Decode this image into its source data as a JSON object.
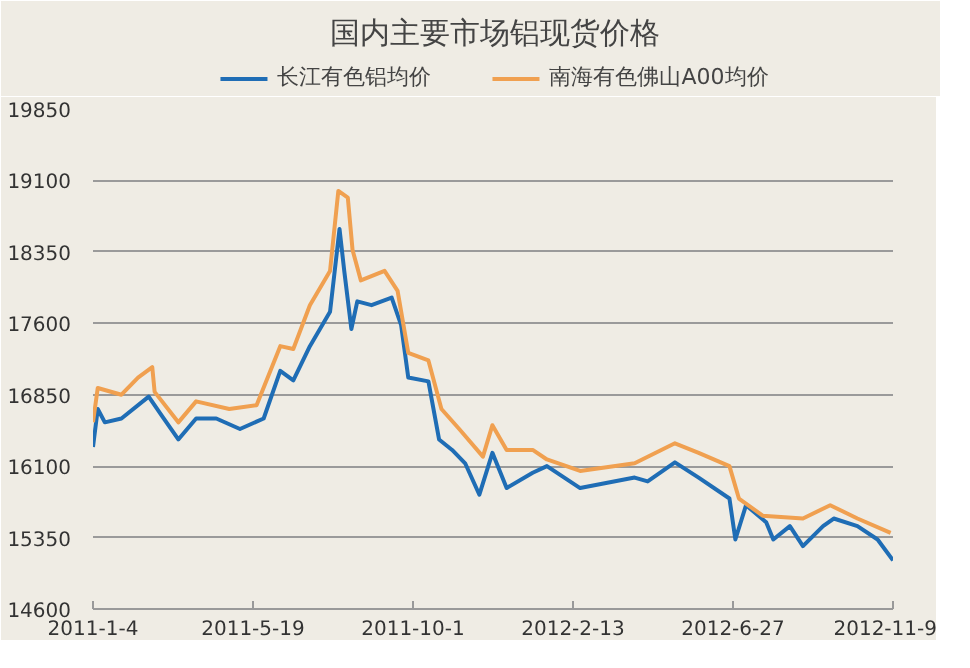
{
  "chart_data": {
    "type": "line",
    "title": "国内主要市场铝现货价格",
    "xlim": [
      "2011-01-04",
      "2012-11-09"
    ],
    "xticks": [
      {
        "value": "2011-01-04",
        "label": "2011-1-4"
      },
      {
        "value": "2011-05-19",
        "label": "2011-5-19"
      },
      {
        "value": "2011-10-01",
        "label": "2011-10-1"
      },
      {
        "value": "2012-02-13",
        "label": "2012-2-13"
      },
      {
        "value": "2012-06-27",
        "label": "2012-6-27"
      },
      {
        "value": "2012-11-09",
        "label": "2012-11-9"
      }
    ],
    "ylim": [
      14600,
      19850
    ],
    "yticks": [
      14600,
      15350,
      16100,
      16850,
      17600,
      18350,
      19100,
      19850
    ],
    "grid": "y",
    "legend": "top",
    "line_style": "solid",
    "marker": "none",
    "series": [
      {
        "name": "长江有色铝均价",
        "color": "#1f6db5",
        "x": [
          "2011-01-04",
          "2011-01-08",
          "2011-01-14",
          "2011-01-28",
          "2011-02-20",
          "2011-03-03",
          "2011-03-17",
          "2011-04-01",
          "2011-04-18",
          "2011-05-08",
          "2011-05-28",
          "2011-06-11",
          "2011-06-22",
          "2011-07-06",
          "2011-07-23",
          "2011-07-31",
          "2011-08-04",
          "2011-08-10",
          "2011-08-15",
          "2011-08-27",
          "2011-09-13",
          "2011-09-21",
          "2011-09-27",
          "2011-10-14",
          "2011-10-23",
          "2011-11-03",
          "2011-11-14",
          "2011-11-26",
          "2011-12-07",
          "2011-12-19",
          "2012-01-10",
          "2012-01-22",
          "2012-02-19",
          "2012-04-05",
          "2012-04-16",
          "2012-05-09",
          "2012-05-29",
          "2012-06-24",
          "2012-06-29",
          "2012-07-08",
          "2012-07-25",
          "2012-07-31",
          "2012-08-14",
          "2012-08-25",
          "2012-09-11",
          "2012-09-20",
          "2012-10-10",
          "2012-10-27",
          "2012-11-09"
        ],
        "values": [
          16300,
          16700,
          16560,
          16600,
          16830,
          16630,
          16380,
          16600,
          16600,
          16490,
          16600,
          17100,
          17000,
          17360,
          17720,
          18590,
          18150,
          17540,
          17830,
          17790,
          17870,
          17580,
          17030,
          16990,
          16380,
          16270,
          16130,
          15800,
          16240,
          15870,
          16030,
          16100,
          15870,
          15980,
          15940,
          16140,
          15980,
          15760,
          15330,
          15690,
          15510,
          15330,
          15470,
          15260,
          15470,
          15550,
          15470,
          15330,
          15110
        ]
      },
      {
        "name": "南海有色佛山A00均价",
        "color": "#f0a050",
        "x": [
          "2011-01-04",
          "2011-01-08",
          "2011-01-28",
          "2011-02-11",
          "2011-02-23",
          "2011-02-25",
          "2011-03-17",
          "2011-04-01",
          "2011-04-29",
          "2011-05-22",
          "2011-06-11",
          "2011-06-22",
          "2011-07-06",
          "2011-07-23",
          "2011-07-30",
          "2011-08-07",
          "2011-08-11",
          "2011-08-18",
          "2011-09-07",
          "2011-09-18",
          "2011-09-27",
          "2011-10-14",
          "2011-10-25",
          "2011-11-09",
          "2011-11-29",
          "2011-12-07",
          "2011-12-19",
          "2012-01-10",
          "2012-01-22",
          "2012-02-19",
          "2012-04-05",
          "2012-05-09",
          "2012-05-29",
          "2012-06-24",
          "2012-07-02",
          "2012-07-22",
          "2012-08-25",
          "2012-09-17",
          "2012-10-10",
          "2012-11-07"
        ],
        "values": [
          16560,
          16920,
          16850,
          17030,
          17140,
          16880,
          16560,
          16780,
          16700,
          16740,
          17360,
          17330,
          17790,
          18150,
          18990,
          18920,
          18370,
          18050,
          18150,
          17940,
          17290,
          17210,
          16700,
          16490,
          16200,
          16530,
          16270,
          16270,
          16170,
          16050,
          16130,
          16340,
          16240,
          16100,
          15760,
          15580,
          15550,
          15690,
          15550,
          15400
        ]
      }
    ]
  }
}
